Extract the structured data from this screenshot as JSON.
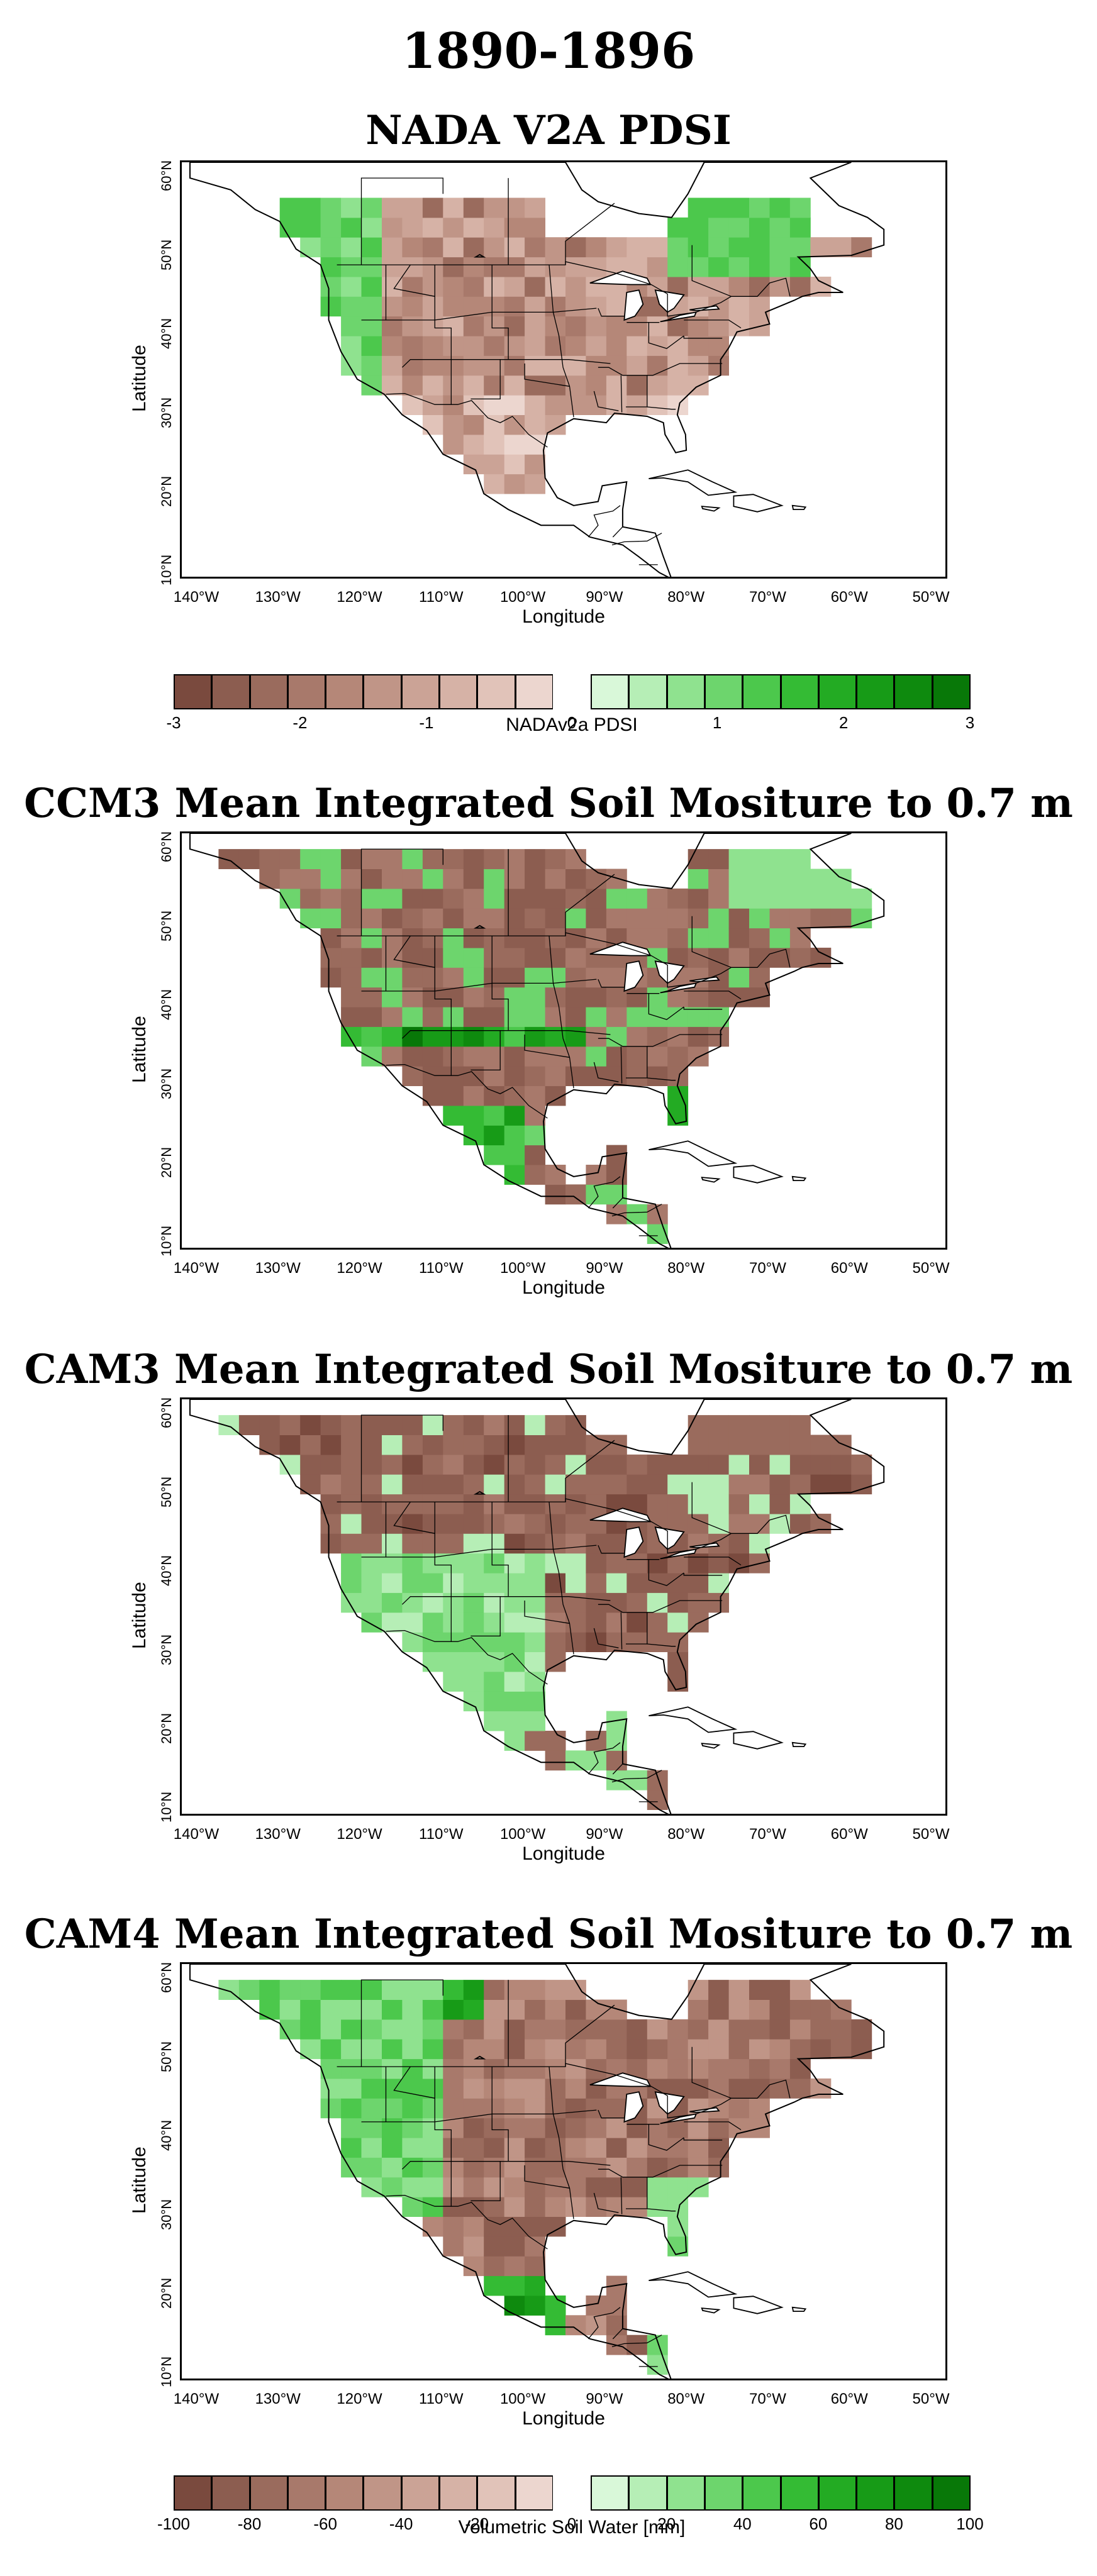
{
  "figure": {
    "title": "1890-1896"
  },
  "panels": [
    {
      "id": "nada",
      "title": "NADA V2A PDSI",
      "xlabel": "Longitude",
      "ylabel": "Latitude"
    },
    {
      "id": "ccm3",
      "title": "CCM3 Mean Integrated Soil Mositure to 0.7 m",
      "xlabel": "Longitude",
      "ylabel": "Latitude"
    },
    {
      "id": "cam3",
      "title": "CAM3 Mean Integrated Soil Mositure to 0.7 m",
      "xlabel": "Longitude",
      "ylabel": "Latitude"
    },
    {
      "id": "cam4",
      "title": "CAM4 Mean Integrated Soil Mositure to 0.7 m",
      "xlabel": "Longitude",
      "ylabel": "Latitude"
    }
  ],
  "axes": {
    "lat_ticks": [
      "10°N",
      "20°N",
      "30°N",
      "40°N",
      "50°N",
      "60°N"
    ],
    "lon_ticks": [
      "140°W",
      "130°W",
      "120°W",
      "110°W",
      "100°W",
      "90°W",
      "80°W",
      "70°W",
      "60°W",
      "50°W"
    ],
    "lat_range": [
      9,
      62
    ],
    "lon_range": [
      -142,
      -48
    ]
  },
  "colorbars": [
    {
      "id": "pdsi",
      "label": "NADAv2a PDSI",
      "ticks": [
        "-3",
        "-2",
        "-1",
        "0",
        "1",
        "2",
        "3"
      ],
      "range": [
        -3,
        3
      ]
    },
    {
      "id": "soil",
      "label": "Volumetric Soil Water [mm]",
      "ticks": [
        "-100",
        "-80",
        "-60",
        "-40",
        "-20",
        "0",
        "20",
        "40",
        "60",
        "80",
        "100"
      ],
      "range": [
        -100,
        100
      ]
    }
  ],
  "palette": {
    "dry": [
      "#7a4a3e",
      "#8c5d50",
      "#9a6b5d",
      "#a8796b",
      "#b58778",
      "#c09587",
      "#cba396",
      "#d6b2a6",
      "#e1c3b9",
      "#ecd6cf"
    ],
    "zero": "#ffffff",
    "wet": [
      "#d9f8d9",
      "#b6eeb6",
      "#8fe28f",
      "#6dd56d",
      "#4cc84c",
      "#34bb34",
      "#23ab23",
      "#179b17",
      "#0e8a0e",
      "#087808"
    ],
    "coast": "#000000",
    "background": "#ffffff"
  }
}
